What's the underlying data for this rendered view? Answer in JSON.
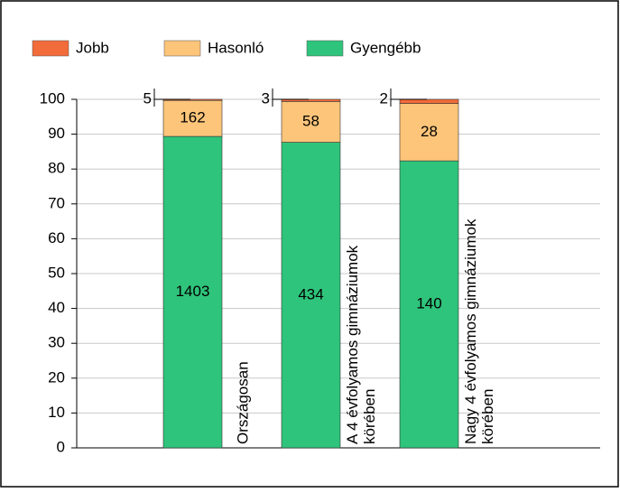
{
  "chart_data": {
    "type": "bar",
    "stacking": "percent",
    "categories": [
      "Országosan",
      "A 4 évfolyamos gimnáziumok körében",
      "Nagy 4 évfolyamos gimnáziumok körében"
    ],
    "series": [
      {
        "name": "Jobb",
        "color": "#f26b3a",
        "values": [
          5,
          3,
          2
        ]
      },
      {
        "name": "Hasonló",
        "color": "#fdc57a",
        "values": [
          162,
          58,
          28
        ]
      },
      {
        "name": "Gyengébb",
        "color": "#2fc47b",
        "values": [
          1403,
          434,
          140
        ]
      }
    ],
    "ylim": [
      0,
      100
    ],
    "yticks": [
      0,
      10,
      20,
      30,
      40,
      50,
      60,
      70,
      80,
      90,
      100
    ],
    "grid": true
  }
}
